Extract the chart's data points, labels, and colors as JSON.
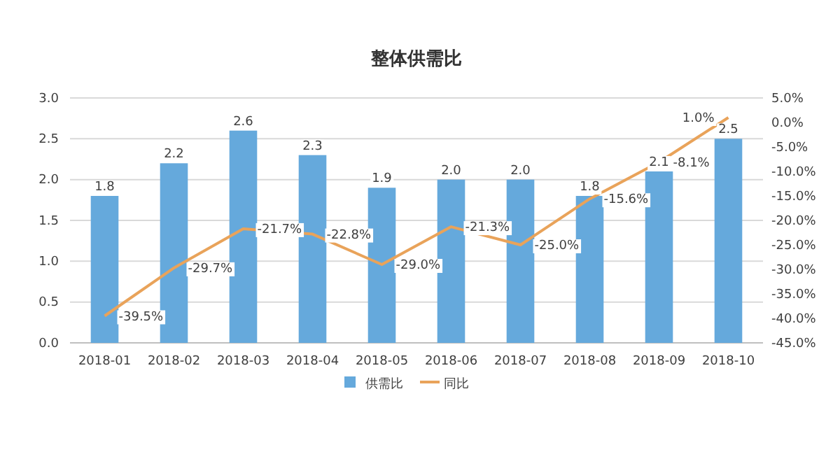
{
  "chart_data": {
    "type": "bar",
    "title": "整体供需比",
    "categories": [
      "2018-01",
      "2018-02",
      "2018-03",
      "2018-04",
      "2018-05",
      "2018-06",
      "2018-07",
      "2018-08",
      "2018-09",
      "2018-10"
    ],
    "series": [
      {
        "name": "供需比",
        "type": "bar",
        "color": "#65a9dc",
        "values": [
          1.8,
          2.2,
          2.6,
          2.3,
          1.9,
          2.0,
          2.0,
          1.8,
          2.1,
          2.5
        ],
        "value_labels": [
          "1.8",
          "2.2",
          "2.6",
          "2.3",
          "1.9",
          "2.0",
          "2.0",
          "1.8",
          "2.1",
          "2.5"
        ]
      },
      {
        "name": "同比",
        "type": "line",
        "axis": "y2",
        "color": "#e9a35a",
        "values": [
          -39.5,
          -29.7,
          -21.7,
          -22.8,
          -29.0,
          -21.3,
          -25.0,
          -15.6,
          -8.1,
          1.0
        ],
        "value_labels": [
          "-39.5%",
          "-29.7%",
          "-21.7%",
          "-22.8%",
          "-29.0%",
          "-21.3%",
          "-25.0%",
          "-15.6%",
          "-8.1%",
          "1.0%"
        ]
      }
    ],
    "ylim": [
      0,
      3
    ],
    "yticks": [
      {
        "value": 0,
        "label": "0.0"
      },
      {
        "value": 0.5,
        "label": "0.5"
      },
      {
        "value": 1,
        "label": "1.0"
      },
      {
        "value": 1.5,
        "label": "1.5"
      },
      {
        "value": 2,
        "label": "2.0"
      },
      {
        "value": 2.5,
        "label": "2.5"
      },
      {
        "value": 3,
        "label": "3.0"
      }
    ],
    "y2lim": [
      -45,
      5
    ],
    "y2ticks": [
      {
        "value": -45,
        "label": "-45.0%"
      },
      {
        "value": -40,
        "label": "-40.0%"
      },
      {
        "value": -35,
        "label": "-35.0%"
      },
      {
        "value": -30,
        "label": "-30.0%"
      },
      {
        "value": -25,
        "label": "-25.0%"
      },
      {
        "value": -20,
        "label": "-20.0%"
      },
      {
        "value": -15,
        "label": "-15.0%"
      },
      {
        "value": -10,
        "label": "-10.0%"
      },
      {
        "value": -5,
        "label": "-5.0%"
      },
      {
        "value": 0,
        "label": "0.0%"
      },
      {
        "value": 5,
        "label": "5.0%"
      }
    ],
    "grid": "y",
    "legend": "bottom",
    "marker": "none"
  }
}
